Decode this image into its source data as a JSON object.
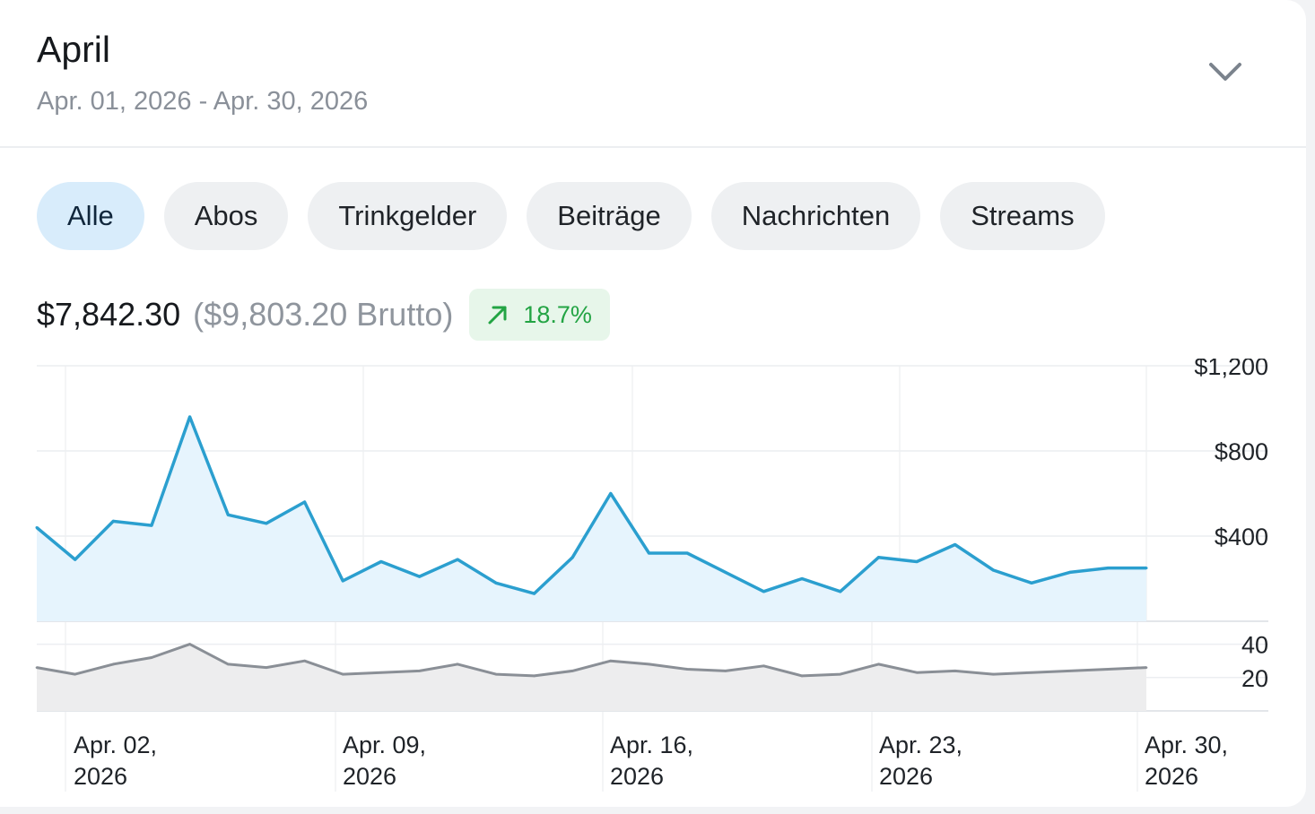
{
  "header": {
    "title": "April",
    "date_range": "Apr. 01, 2026 - Apr. 30, 2026",
    "expand_icon": "chevron-down-icon"
  },
  "filters": {
    "tabs": [
      {
        "label": "Alle",
        "active": true
      },
      {
        "label": "Abos",
        "active": false
      },
      {
        "label": "Trinkgelder",
        "active": false
      },
      {
        "label": "Beiträge",
        "active": false
      },
      {
        "label": "Nachrichten",
        "active": false
      },
      {
        "label": "Streams",
        "active": false
      }
    ]
  },
  "summary": {
    "net": "$7,842.30",
    "gross": "($9,803.20 Brutto)",
    "change": "18.7%",
    "change_icon": "trend-up-arrow-icon",
    "change_color": "#23a444"
  },
  "colors": {
    "earnings_line": "#2b9fcf",
    "earnings_fill": "#e6f4fd",
    "count_line": "#8a8f96",
    "count_fill": "#ededee",
    "active_tab": "#d8ecfb"
  },
  "chart_data": [
    {
      "type": "area",
      "x": [
        "2026-04-01",
        "2026-04-02",
        "2026-04-03",
        "2026-04-04",
        "2026-04-05",
        "2026-04-06",
        "2026-04-07",
        "2026-04-08",
        "2026-04-09",
        "2026-04-10",
        "2026-04-11",
        "2026-04-12",
        "2026-04-13",
        "2026-04-14",
        "2026-04-15",
        "2026-04-16",
        "2026-04-17",
        "2026-04-18",
        "2026-04-19",
        "2026-04-20",
        "2026-04-21",
        "2026-04-22",
        "2026-04-23",
        "2026-04-24",
        "2026-04-25",
        "2026-04-26",
        "2026-04-27",
        "2026-04-28",
        "2026-04-29",
        "2026-04-30"
      ],
      "series": [
        {
          "values": [
            440,
            290,
            470,
            450,
            960,
            500,
            460,
            560,
            190,
            280,
            210,
            290,
            180,
            130,
            300,
            600,
            320,
            320,
            230,
            140,
            200,
            140,
            300,
            280,
            360,
            240,
            180,
            230,
            250,
            250
          ]
        }
      ],
      "y_ticks": [
        "$1,200",
        "$800",
        "$400"
      ],
      "ylim": [
        0,
        1200
      ],
      "grid": true
    },
    {
      "type": "area",
      "x": [
        "2026-04-01",
        "2026-04-02",
        "2026-04-03",
        "2026-04-04",
        "2026-04-05",
        "2026-04-06",
        "2026-04-07",
        "2026-04-08",
        "2026-04-09",
        "2026-04-10",
        "2026-04-11",
        "2026-04-12",
        "2026-04-13",
        "2026-04-14",
        "2026-04-15",
        "2026-04-16",
        "2026-04-17",
        "2026-04-18",
        "2026-04-19",
        "2026-04-20",
        "2026-04-21",
        "2026-04-22",
        "2026-04-23",
        "2026-04-24",
        "2026-04-25",
        "2026-04-26",
        "2026-04-27",
        "2026-04-28",
        "2026-04-29",
        "2026-04-30"
      ],
      "series": [
        {
          "values": [
            26,
            22,
            28,
            32,
            40,
            28,
            26,
            30,
            22,
            23,
            24,
            28,
            22,
            21,
            24,
            30,
            28,
            25,
            24,
            27,
            21,
            22,
            28,
            23,
            24,
            22,
            23,
            24,
            25,
            26
          ]
        }
      ],
      "y_ticks": [
        "40",
        "20"
      ],
      "ylim": [
        0,
        50
      ],
      "x_tick_labels": [
        [
          "Apr. 02,",
          "2026"
        ],
        [
          "Apr. 09,",
          "2026"
        ],
        [
          "Apr. 16,",
          "2026"
        ],
        [
          "Apr. 23,",
          "2026"
        ],
        [
          "Apr. 30,",
          "2026"
        ]
      ],
      "grid": true
    }
  ]
}
